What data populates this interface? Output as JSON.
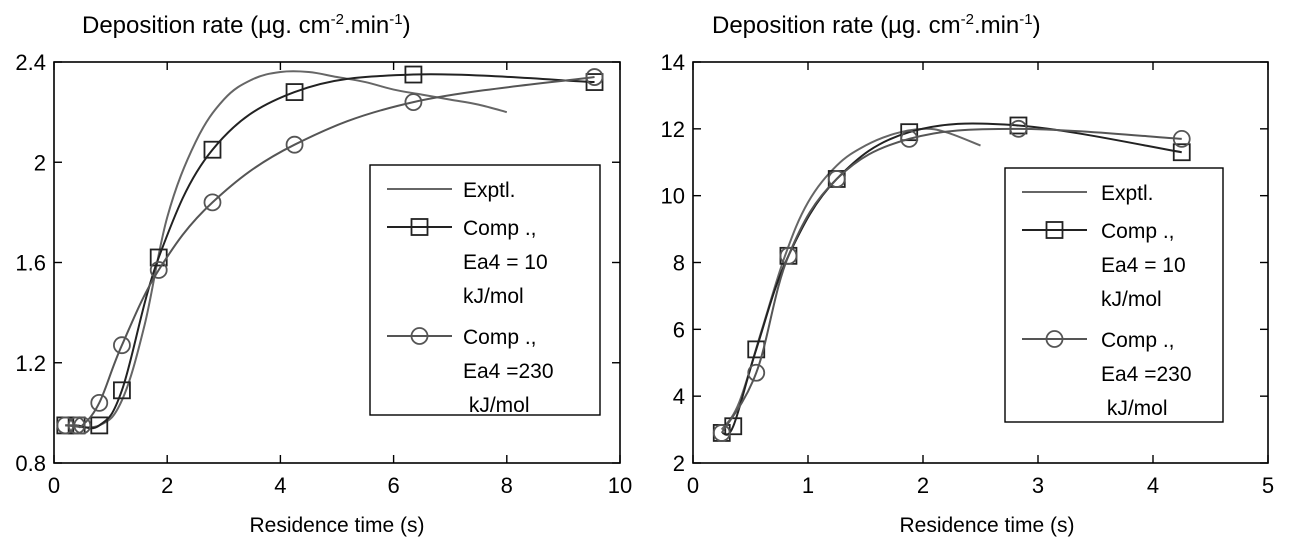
{
  "chart_data": [
    {
      "type": "line",
      "title": "Deposition rate (µg. cm",
      "title_sup1": "-2",
      "title_mid": ".min",
      "title_sup2": "-1",
      "title_end": ")",
      "xlabel": "Residence  time (s)",
      "ylabel": "",
      "xlim": [
        0,
        10
      ],
      "ylim": [
        0.8,
        2.4
      ],
      "xticks": [
        "0",
        "2",
        "4",
        "6",
        "8",
        "10"
      ],
      "yticks": [
        "0.8",
        "1.2",
        "1.6",
        "2",
        "2.4"
      ],
      "xtick_values": [
        0,
        2,
        4,
        6,
        8,
        10
      ],
      "ytick_values": [
        0.8,
        1.2,
        1.6,
        2.0,
        2.4
      ],
      "legend_position": "right",
      "series": [
        {
          "legend": "Exptl.",
          "marker": "none",
          "color": "#666666",
          "x": [
            0.2,
            0.8,
            1.2,
            1.6,
            2.0,
            2.5,
            3.0,
            3.5,
            4.0,
            4.5,
            5.0,
            5.5,
            6.0,
            6.5,
            7.0,
            7.5,
            8.0
          ],
          "y": [
            0.95,
            0.95,
            1.05,
            1.35,
            1.78,
            2.08,
            2.25,
            2.33,
            2.36,
            2.36,
            2.34,
            2.32,
            2.29,
            2.27,
            2.25,
            2.23,
            2.2
          ]
        },
        {
          "legend": [
            "Comp .,",
            "Ea4 = 10",
            "kJ/mol"
          ],
          "marker": "square",
          "color": "#222222",
          "x": [
            0.2,
            0.4,
            0.8,
            1.2,
            1.85,
            2.8,
            4.25,
            6.35,
            9.55
          ],
          "y": [
            0.95,
            0.95,
            0.95,
            1.09,
            1.62,
            2.05,
            2.28,
            2.35,
            2.32
          ]
        },
        {
          "legend": [
            "Comp .,",
            "Ea4 =230",
            " kJ/mol"
          ],
          "marker": "circle",
          "color": "#555555",
          "x": [
            0.2,
            0.4,
            0.5,
            0.8,
            1.2,
            1.85,
            2.8,
            4.25,
            6.35,
            9.55
          ],
          "y": [
            0.95,
            0.95,
            0.95,
            1.04,
            1.27,
            1.57,
            1.84,
            2.07,
            2.24,
            2.34
          ]
        }
      ]
    },
    {
      "type": "line",
      "title": "Deposition rate (µg. cm",
      "title_sup1": "-2",
      "title_mid": ".min",
      "title_sup2": "-1",
      "title_end": ")",
      "xlabel": "Residence  time (s)",
      "ylabel": "",
      "xlim": [
        0,
        5
      ],
      "ylim": [
        2,
        14
      ],
      "xticks": [
        "0",
        "1",
        "2",
        "3",
        "4",
        "5"
      ],
      "yticks": [
        "2",
        "4",
        "6",
        "8",
        "10",
        "12",
        "14"
      ],
      "xtick_values": [
        0,
        1,
        2,
        3,
        4,
        5
      ],
      "ytick_values": [
        2,
        4,
        6,
        8,
        10,
        12,
        14
      ],
      "legend_position": "right",
      "series": [
        {
          "legend": "Exptl.",
          "marker": "none",
          "color": "#666666",
          "x": [
            0.25,
            0.4,
            0.6,
            0.8,
            1.0,
            1.25,
            1.5,
            1.75,
            2.0,
            2.2,
            2.5
          ],
          "y": [
            3.0,
            3.8,
            6.0,
            8.2,
            9.8,
            10.9,
            11.5,
            11.85,
            12.0,
            11.9,
            11.5
          ]
        },
        {
          "legend": [
            "Comp .,",
            "Ea4 = 10",
            "kJ/mol"
          ],
          "marker": "square",
          "color": "#222222",
          "x": [
            0.25,
            0.35,
            0.55,
            0.83,
            1.25,
            1.88,
            2.83,
            4.25
          ],
          "y": [
            2.9,
            3.1,
            5.4,
            8.2,
            10.5,
            11.9,
            12.1,
            11.3
          ]
        },
        {
          "legend": [
            "Comp .,",
            "Ea4 =230",
            " kJ/mol"
          ],
          "marker": "circle",
          "color": "#555555",
          "x": [
            0.25,
            0.55,
            0.83,
            1.25,
            1.88,
            2.83,
            4.25
          ],
          "y": [
            2.9,
            4.7,
            8.2,
            10.5,
            11.7,
            12.0,
            11.7
          ]
        }
      ]
    }
  ]
}
